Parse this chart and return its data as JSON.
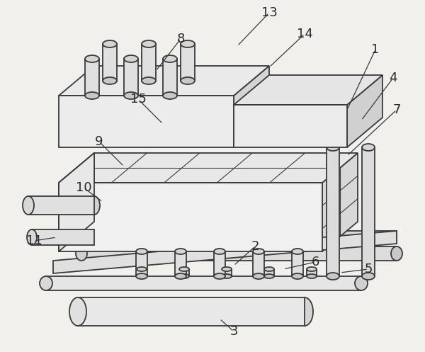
{
  "bg": "#f2f0ec",
  "lc": "#3a3a3a",
  "lw": 1.3,
  "lw_thin": 0.8,
  "lw_thick": 1.8,
  "figsize": [
    6.0,
    4.97
  ],
  "dpi": 100
}
